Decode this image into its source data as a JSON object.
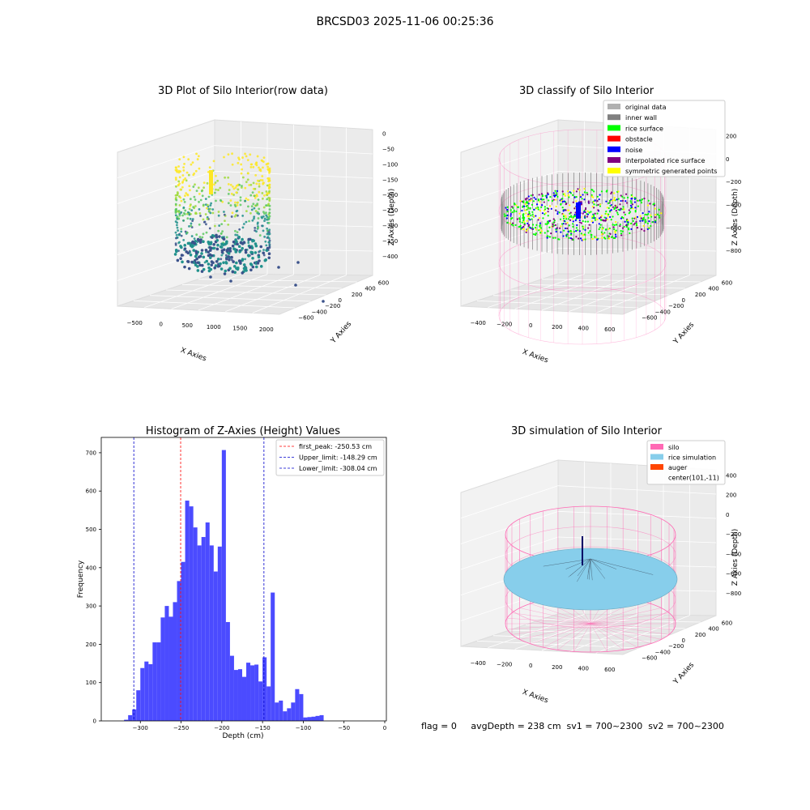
{
  "figure": {
    "suptitle": "BRCSD03 2025-11-06 00:25:36",
    "status_line": "flag = 0     avgDepth = 238 cm  sv1 = 700~2300  sv2 = 700~2300"
  },
  "colors": {
    "hist_bar": "#4b4bff",
    "first_peak": "#ff0000",
    "limit_lines": "#0000cc",
    "silo_pink": "#ff69b4",
    "rice_blue": "#87ceeb",
    "auger": "#ff4500",
    "original": "#b0b0b0",
    "inner_wall": "#808080",
    "rice_surface": "#00ff00",
    "obstacle": "#ff0000",
    "noise": "#0000ff",
    "interpolated": "#800080",
    "symmetric": "#ffff00"
  },
  "chart_data": [
    {
      "type": "scatter",
      "title": "3D Plot of Silo Interior(row data)",
      "xlabel": "X Axies",
      "ylabel": "Y Axies",
      "zlabel": "Z Axies (Depth)",
      "xticks": [
        "−500",
        "0",
        "500",
        "1000",
        "1500",
        "2000"
      ],
      "yticks": [
        "−600",
        "−400",
        "−200",
        "0",
        "200",
        "400",
        "600"
      ],
      "zticks": [
        "0",
        "−50",
        "−100",
        "−150",
        "−200",
        "−250",
        "−300",
        "−350",
        "−400"
      ]
    },
    {
      "type": "scatter",
      "title": "3D classify of Silo Interior",
      "xlabel": "X Axies",
      "ylabel": "Y Axies",
      "zlabel": "Z Axies (Depth)",
      "xticks": [
        "−400",
        "−200",
        "0",
        "200",
        "400",
        "600"
      ],
      "yticks": [
        "−600",
        "−400",
        "−200",
        "0",
        "200",
        "400",
        "600"
      ],
      "zticks": [
        "200",
        "0",
        "−200",
        "−400",
        "−600",
        "−800"
      ],
      "legend": {
        "placement": "top-right",
        "entries": [
          {
            "label": "original data",
            "color": "#b0b0b0"
          },
          {
            "label": "inner wall",
            "color": "#808080"
          },
          {
            "label": "rice surface",
            "color": "#00ff00"
          },
          {
            "label": "obstacle",
            "color": "#ff0000"
          },
          {
            "label": "noise",
            "color": "#0000ff"
          },
          {
            "label": "interpolated rice surface",
            "color": "#800080"
          },
          {
            "label": "symmetric generated points",
            "color": "#ffff00"
          }
        ]
      }
    },
    {
      "type": "bar",
      "title": "Histogram of Z-Axies (Height) Values",
      "xlabel": "Depth (cm)",
      "ylabel": "Frequency",
      "xlim": [
        -348,
        2
      ],
      "ylim": [
        0,
        740
      ],
      "xticks": [
        -300,
        -250,
        -200,
        -150,
        -100,
        -50,
        0
      ],
      "yticks": [
        0,
        100,
        200,
        300,
        400,
        500,
        600,
        700
      ],
      "bin_width": 5,
      "bins_start": -320,
      "values": [
        3,
        15,
        30,
        80,
        138,
        155,
        148,
        205,
        205,
        270,
        300,
        272,
        310,
        365,
        415,
        575,
        560,
        505,
        458,
        480,
        518,
        458,
        390,
        455,
        707,
        258,
        170,
        133,
        135,
        115,
        152,
        145,
        147,
        103,
        166,
        90,
        335,
        48,
        53,
        25,
        33,
        48,
        83,
        70,
        9,
        10,
        11,
        13,
        15
      ],
      "vlines": [
        {
          "label": "first_peak: -250.53 cm",
          "x": -250.53,
          "color": "#ff0000"
        },
        {
          "label": "Upper_limit: -148.29 cm",
          "x": -148.29,
          "color": "#0000cc"
        },
        {
          "label": "Lower_limit: -308.04 cm",
          "x": -308.04,
          "color": "#0000cc"
        }
      ],
      "legend_placement": "top-right"
    },
    {
      "type": "scatter",
      "title": "3D simulation of Silo Interior",
      "xlabel": "X Axies",
      "ylabel": "Y Axies",
      "zlabel": "Z Axies (Depth)",
      "xticks": [
        "−400",
        "−200",
        "0",
        "200",
        "400",
        "600"
      ],
      "yticks": [
        "−600",
        "−400",
        "−200",
        "0",
        "200",
        "400",
        "600"
      ],
      "zticks": [
        "400",
        "200",
        "0",
        "−200",
        "−400",
        "−600",
        "−800"
      ],
      "legend": {
        "placement": "top-right",
        "entries": [
          {
            "label": "silo",
            "color": "#ff69b4"
          },
          {
            "label": "rice simulation",
            "color": "#87ceeb"
          },
          {
            "label": "auger",
            "color": "#ff4500"
          },
          {
            "label": "center(101,-11)",
            "color": ""
          }
        ]
      }
    }
  ]
}
